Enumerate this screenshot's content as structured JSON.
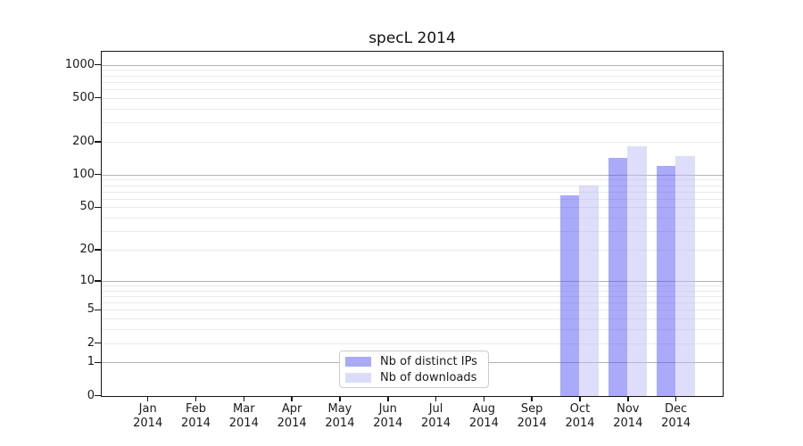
{
  "figure": {
    "title": "specL 2014"
  },
  "chart_data": {
    "type": "bar",
    "title": "specL 2014",
    "categories": [
      "Jan 2014",
      "Feb 2014",
      "Mar 2014",
      "Apr 2014",
      "May 2014",
      "Jun 2014",
      "Jul 2014",
      "Aug 2014",
      "Sep 2014",
      "Oct 2014",
      "Nov 2014",
      "Dec 2014"
    ],
    "x_tick_months": [
      "Jan",
      "Feb",
      "Mar",
      "Apr",
      "May",
      "Jun",
      "Jul",
      "Aug",
      "Sep",
      "Oct",
      "Nov",
      "Dec"
    ],
    "x_tick_year": "2014",
    "series": [
      {
        "name": "Nb of distinct IPs",
        "color": "rgba(85,85,245,0.5)",
        "solid_color": "#aaaaf7",
        "values": [
          0,
          0,
          0,
          0,
          0,
          0,
          0,
          0,
          0,
          65,
          144,
          121
        ]
      },
      {
        "name": "Nb of downloads",
        "color": "rgba(190,190,245,0.5)",
        "solid_color": "#dcdcfa",
        "values": [
          0,
          0,
          0,
          0,
          0,
          0,
          0,
          0,
          0,
          80,
          183,
          148
        ]
      }
    ],
    "y_axis": {
      "scale": "log1p",
      "ticks": [
        0,
        1,
        2,
        5,
        10,
        20,
        50,
        100,
        200,
        500,
        1000
      ],
      "range": [
        0,
        1300
      ]
    },
    "grid": {
      "on": true,
      "major_values": [
        1,
        10,
        100,
        1000
      ],
      "major_color": "#b3b3b3",
      "minor_color": "#e9e9e9"
    },
    "legend": {
      "position": "lower center",
      "entries": [
        "Nb of distinct IPs",
        "Nb of downloads"
      ]
    }
  }
}
